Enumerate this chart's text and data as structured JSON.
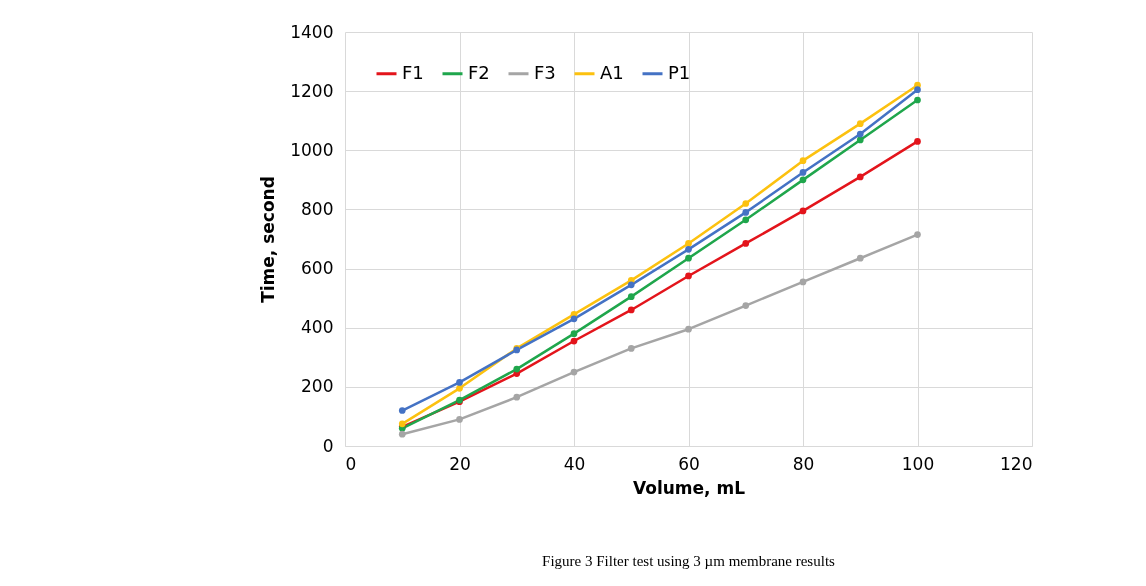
{
  "chart_data": {
    "type": "line",
    "title": "Figure 3 Filter test using 3 µm membrane results",
    "xlabel": "Volume, mL",
    "ylabel": "Time, second",
    "x": [
      10,
      20,
      30,
      40,
      50,
      60,
      70,
      80,
      90,
      100
    ],
    "series": [
      {
        "name": "F1",
        "color": "#e3141b",
        "values": [
          65,
          150,
          245,
          355,
          460,
          575,
          685,
          795,
          910,
          1030
        ]
      },
      {
        "name": "F2",
        "color": "#1fa64c",
        "values": [
          60,
          155,
          260,
          380,
          505,
          635,
          765,
          900,
          1035,
          1170
        ]
      },
      {
        "name": "F3",
        "color": "#a5a5a5",
        "values": [
          40,
          90,
          165,
          250,
          330,
          395,
          475,
          555,
          635,
          715
        ]
      },
      {
        "name": "A1",
        "color": "#fcc10f",
        "values": [
          75,
          195,
          330,
          445,
          560,
          685,
          820,
          965,
          1090,
          1220
        ]
      },
      {
        "name": "P1",
        "color": "#4472c4",
        "values": [
          120,
          215,
          325,
          430,
          545,
          665,
          790,
          925,
          1055,
          1205
        ]
      }
    ],
    "xlim": [
      0,
      120
    ],
    "xticks": [
      0,
      20,
      40,
      60,
      80,
      100,
      120
    ],
    "ylim": [
      0,
      1400
    ],
    "yticks": [
      0,
      200,
      400,
      600,
      800,
      1000,
      1200,
      1400
    ],
    "grid": true,
    "legend": "top left",
    "marker": "circle",
    "line_style": "solid"
  }
}
